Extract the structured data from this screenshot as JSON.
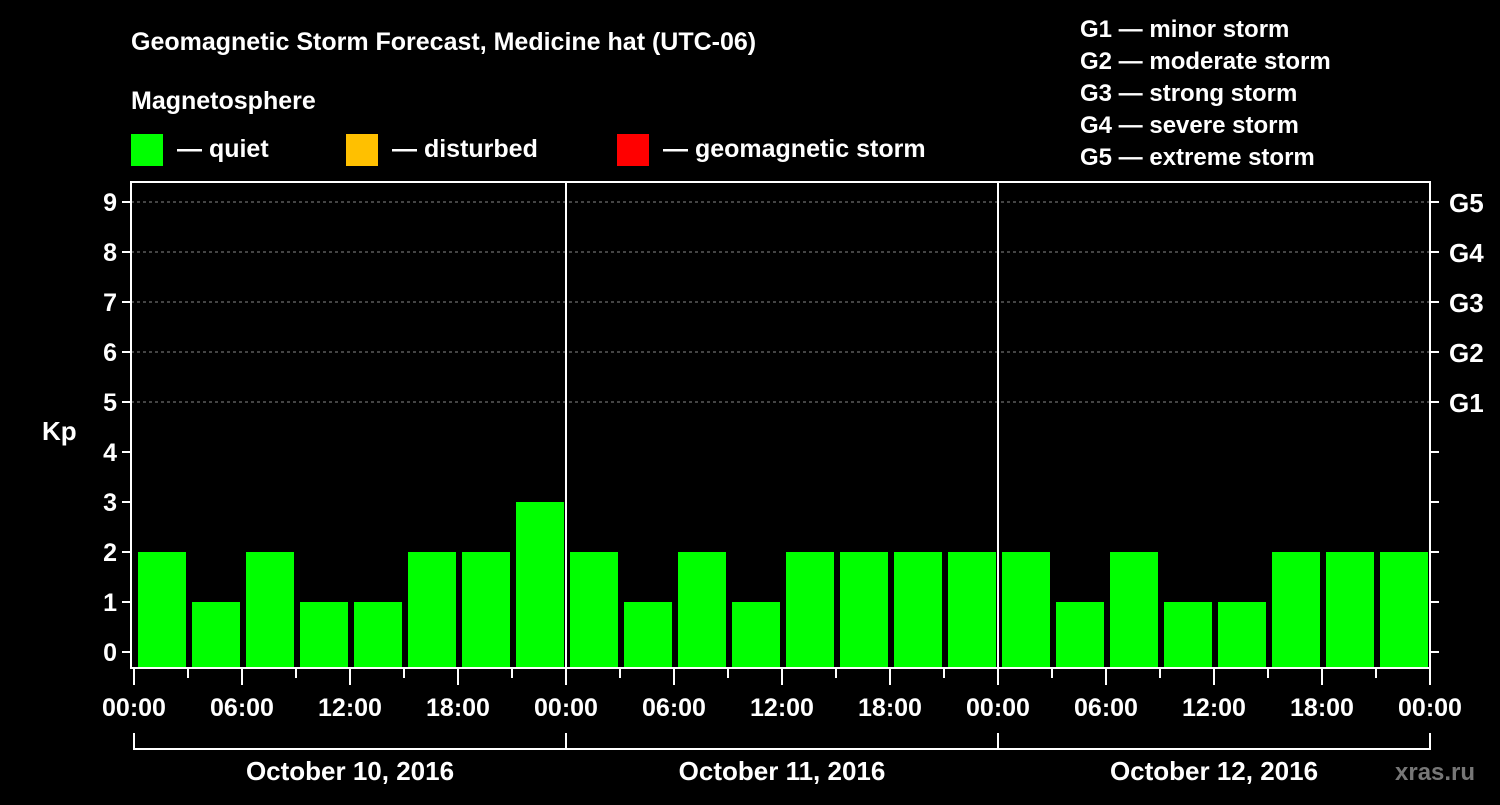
{
  "chart_data": {
    "type": "bar",
    "title": "Geomagnetic Storm Forecast, Medicine hat (UTC-06)",
    "legend_title": "Magnetosphere",
    "legend": [
      {
        "label": "— quiet",
        "color": "#00ff00"
      },
      {
        "label": "— disturbed",
        "color": "#ffc000"
      },
      {
        "label": "— geomagnetic storm",
        "color": "#ff0000"
      }
    ],
    "storm_scale": [
      "G1 — minor storm",
      "G2 — moderate storm",
      "G3 — strong storm",
      "G4 — severe storm",
      "G5 — extreme storm"
    ],
    "ylabel": "Kp",
    "ylim": [
      0,
      9
    ],
    "yticks": [
      "0",
      "1",
      "2",
      "3",
      "4",
      "5",
      "6",
      "7",
      "8",
      "9"
    ],
    "right_ticks": [
      {
        "value": 5,
        "label": "G1"
      },
      {
        "value": 6,
        "label": "G2"
      },
      {
        "value": 7,
        "label": "G3"
      },
      {
        "value": 8,
        "label": "G4"
      },
      {
        "value": 9,
        "label": "G5"
      }
    ],
    "xtick_labels": [
      "00:00",
      "06:00",
      "12:00",
      "18:00",
      "00:00",
      "06:00",
      "12:00",
      "18:00",
      "00:00",
      "06:00",
      "12:00",
      "18:00",
      "00:00"
    ],
    "days": [
      {
        "label": "October 10, 2016",
        "values": [
          2,
          1,
          2,
          1,
          1,
          2,
          2,
          3
        ]
      },
      {
        "label": "October 11, 2016",
        "values": [
          2,
          1,
          2,
          1,
          2,
          2,
          2,
          2
        ]
      },
      {
        "label": "October 12, 2016",
        "values": [
          2,
          1,
          2,
          1,
          1,
          2,
          2,
          2
        ]
      }
    ],
    "bar_interval_hours": 3,
    "grid": true,
    "watermark": "xras.ru"
  }
}
